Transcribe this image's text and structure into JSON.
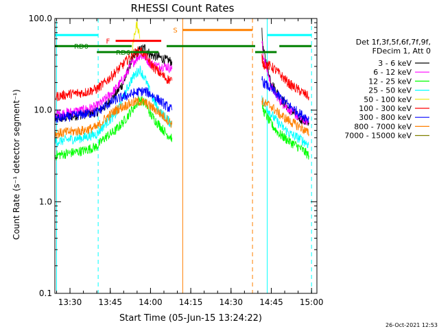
{
  "title": "RHESSI Count Rates",
  "ylabel": "Count Rate (s⁻¹ detector segment⁻¹)",
  "xlabel": "Start Time (05-Jun-15 13:24:22)",
  "footer_date": "26-Oct-2021 12:53",
  "legend": {
    "header1": "Det 1f,3f,5f,6f,7f,9f,",
    "header2": "FDecim 1, Att 0"
  },
  "chart_data": {
    "type": "line",
    "title": "RHESSI Count Rates",
    "xlabel": "Start Time (05-Jun-15 13:24:22)",
    "ylabel": "Count Rate (s⁻¹ detector segment⁻¹)",
    "yscale": "log",
    "ylim": [
      0.1,
      100
    ],
    "xlim": [
      "13:24:22",
      "15:02:00"
    ],
    "xticks": [
      "13:30",
      "13:45",
      "14:00",
      "14:15",
      "14:30",
      "14:45",
      "15:00"
    ],
    "yticks": [
      "0.1",
      "1.0",
      "10.0",
      "100.0"
    ],
    "grid": false,
    "legend_position": "right",
    "series": [
      {
        "name": "3 - 6 keV",
        "color": "#000000",
        "segments": [
          {
            "t": [
              "13:24:30",
              "13:30",
              "13:35",
              "13:40",
              "13:43",
              "13:47",
              "13:50",
              "13:53",
              "13:56",
              "13:58",
              "14:00",
              "14:03",
              "14:06",
              "14:08"
            ],
            "v": [
              8,
              8.5,
              9,
              9.5,
              11,
              15,
              20,
              35,
              45,
              48,
              40,
              38,
              35,
              34
            ]
          },
          {
            "t": [
              "14:41:30",
              "14:42",
              "14:45",
              "14:48",
              "14:52",
              "14:56",
              "14:59"
            ],
            "v": [
              70,
              45,
              20,
              14,
              10,
              8,
              7
            ]
          }
        ]
      },
      {
        "name": "6 - 12 keV",
        "color": "#ff00ff",
        "segments": [
          {
            "t": [
              "13:24:30",
              "13:30",
              "13:35",
              "13:40",
              "13:43",
              "13:47",
              "13:50",
              "13:53",
              "13:56",
              "13:58",
              "14:00",
              "14:03",
              "14:06",
              "14:08"
            ],
            "v": [
              9,
              9.5,
              10,
              11,
              13,
              17,
              22,
              32,
              40,
              38,
              32,
              30,
              30,
              28
            ]
          },
          {
            "t": [
              "14:41:30",
              "14:42",
              "14:45",
              "14:48",
              "14:52",
              "14:56",
              "14:59"
            ],
            "v": [
              55,
              40,
              18,
              13,
              10,
              8,
              7.5
            ]
          }
        ]
      },
      {
        "name": "12 - 25 keV",
        "color": "#00ff00",
        "segments": [
          {
            "t": [
              "13:24:30",
              "13:30",
              "13:35",
              "13:40",
              "13:43",
              "13:47",
              "13:50",
              "13:53",
              "13:56",
              "13:58",
              "14:00",
              "14:03",
              "14:06",
              "14:08"
            ],
            "v": [
              3.2,
              3.4,
              3.6,
              4,
              5,
              6,
              7.5,
              10,
              13,
              12,
              9,
              7,
              5.5,
              5
            ]
          },
          {
            "t": [
              "14:41:30",
              "14:42",
              "14:45",
              "14:48",
              "14:52",
              "14:56",
              "14:59"
            ],
            "v": [
              12,
              10,
              7,
              5.5,
              4.5,
              3.8,
              3.2
            ]
          }
        ]
      },
      {
        "name": "25 - 50 keV",
        "color": "#00ffff",
        "segments": [
          {
            "t": [
              "13:24:30",
              "13:30",
              "13:35",
              "13:40",
              "13:43",
              "13:47",
              "13:50",
              "13:53",
              "13:56",
              "13:58",
              "14:00",
              "14:03",
              "14:06",
              "14:08"
            ],
            "v": [
              4.5,
              4.8,
              5,
              5.5,
              7,
              9,
              14,
              22,
              28,
              22,
              15,
              10,
              8,
              7
            ]
          },
          {
            "t": [
              "14:41:30",
              "14:42",
              "14:45",
              "14:48",
              "14:52",
              "14:56",
              "14:59"
            ],
            "v": [
              15,
              12,
              9,
              7,
              5.5,
              4.8,
              4.2
            ]
          }
        ]
      },
      {
        "name": "50 - 100 keV",
        "color": "#e8e800",
        "segments": [
          {
            "t": [
              "13:53",
              "13:54",
              "13:55",
              "13:56"
            ],
            "v": [
              40,
              70,
              85,
              60
            ]
          }
        ]
      },
      {
        "name": "100 - 300 keV",
        "color": "#ff0000",
        "segments": [
          {
            "t": [
              "13:24:30",
              "13:30",
              "13:35",
              "13:40",
              "13:43",
              "13:47",
              "13:50",
              "13:53",
              "13:56",
              "13:58",
              "14:00",
              "14:03",
              "14:06",
              "14:08"
            ],
            "v": [
              14,
              15,
              15.5,
              17,
              20,
              26,
              32,
              40,
              45,
              40,
              32,
              26,
              22,
              21
            ]
          },
          {
            "t": [
              "14:41:30",
              "14:42",
              "14:45",
              "14:48",
              "14:52",
              "14:56",
              "14:59"
            ],
            "v": [
              38,
              32,
              30,
              25,
              19,
              16,
              14
            ]
          }
        ]
      },
      {
        "name": "300 - 800 keV",
        "color": "#0000ff",
        "segments": [
          {
            "t": [
              "13:24:30",
              "13:30",
              "13:35",
              "13:40",
              "13:43",
              "13:47",
              "13:50",
              "13:53",
              "13:56",
              "13:58",
              "14:00",
              "14:03",
              "14:06",
              "14:08"
            ],
            "v": [
              8,
              8.5,
              9,
              9.5,
              11,
              13,
              14,
              15,
              16,
              16,
              15,
              13,
              11,
              10
            ]
          },
          {
            "t": [
              "14:41:30",
              "14:42",
              "14:45",
              "14:48",
              "14:52",
              "14:56",
              "14:59"
            ],
            "v": [
              22,
              20,
              17,
              14,
              11,
              9,
              8
            ]
          }
        ]
      },
      {
        "name": "800 - 7000 keV",
        "color": "#ff8000",
        "segments": [
          {
            "t": [
              "13:24:30",
              "13:30",
              "13:35",
              "13:40",
              "13:43",
              "13:47",
              "13:50",
              "13:53",
              "13:56",
              "13:58",
              "14:00",
              "14:03",
              "14:06",
              "14:08"
            ],
            "v": [
              5.5,
              5.8,
              6,
              6.5,
              8,
              10,
              11,
              12,
              12.5,
              12,
              11,
              9.5,
              8,
              7
            ]
          },
          {
            "t": [
              "14:41:30",
              "14:42",
              "14:45",
              "14:48",
              "14:52",
              "14:56",
              "14:59"
            ],
            "v": [
              13,
              12,
              11,
              9,
              7.5,
              6.5,
              5.5
            ]
          }
        ]
      },
      {
        "name": "7000 - 15000 keV",
        "color": "#808000",
        "segments": []
      }
    ],
    "state_bars": [
      {
        "label": "N",
        "color": "#00ffff",
        "y": 66,
        "ranges": [
          [
            "13:24:22",
            "13:40:30"
          ],
          [
            "14:43:30",
            "15:00:00"
          ]
        ]
      },
      {
        "label": "S",
        "color": "#ff8000",
        "y": 75,
        "ranges": [
          [
            "14:12",
            "14:38"
          ]
        ]
      },
      {
        "label": "F",
        "color": "#ff0000",
        "y": 57,
        "ranges": [
          [
            "13:47",
            "14:04"
          ]
        ]
      },
      {
        "label": "RD0",
        "color": "#008000",
        "y": 50,
        "ranges": [
          [
            "13:24:22",
            "13:53"
          ],
          [
            "14:06",
            "14:39"
          ],
          [
            "14:48",
            "15:00"
          ]
        ]
      },
      {
        "label": "RD6",
        "color": "#008000",
        "y": 43,
        "ranges": [
          [
            "13:40",
            "14:03"
          ],
          [
            "14:39",
            "14:47"
          ]
        ]
      }
    ],
    "vertical_markers": [
      {
        "t": "13:25:00",
        "color": "#00ffff",
        "style": "solid"
      },
      {
        "t": "13:40:30",
        "color": "#00ffff",
        "style": "dashed"
      },
      {
        "t": "14:12:00",
        "color": "#ff8000",
        "style": "solid"
      },
      {
        "t": "14:38:00",
        "color": "#ff8000",
        "style": "dashed"
      },
      {
        "t": "14:43:30",
        "color": "#00ffff",
        "style": "solid"
      },
      {
        "t": "15:00:00",
        "color": "#00ffff",
        "style": "dashed"
      }
    ]
  }
}
